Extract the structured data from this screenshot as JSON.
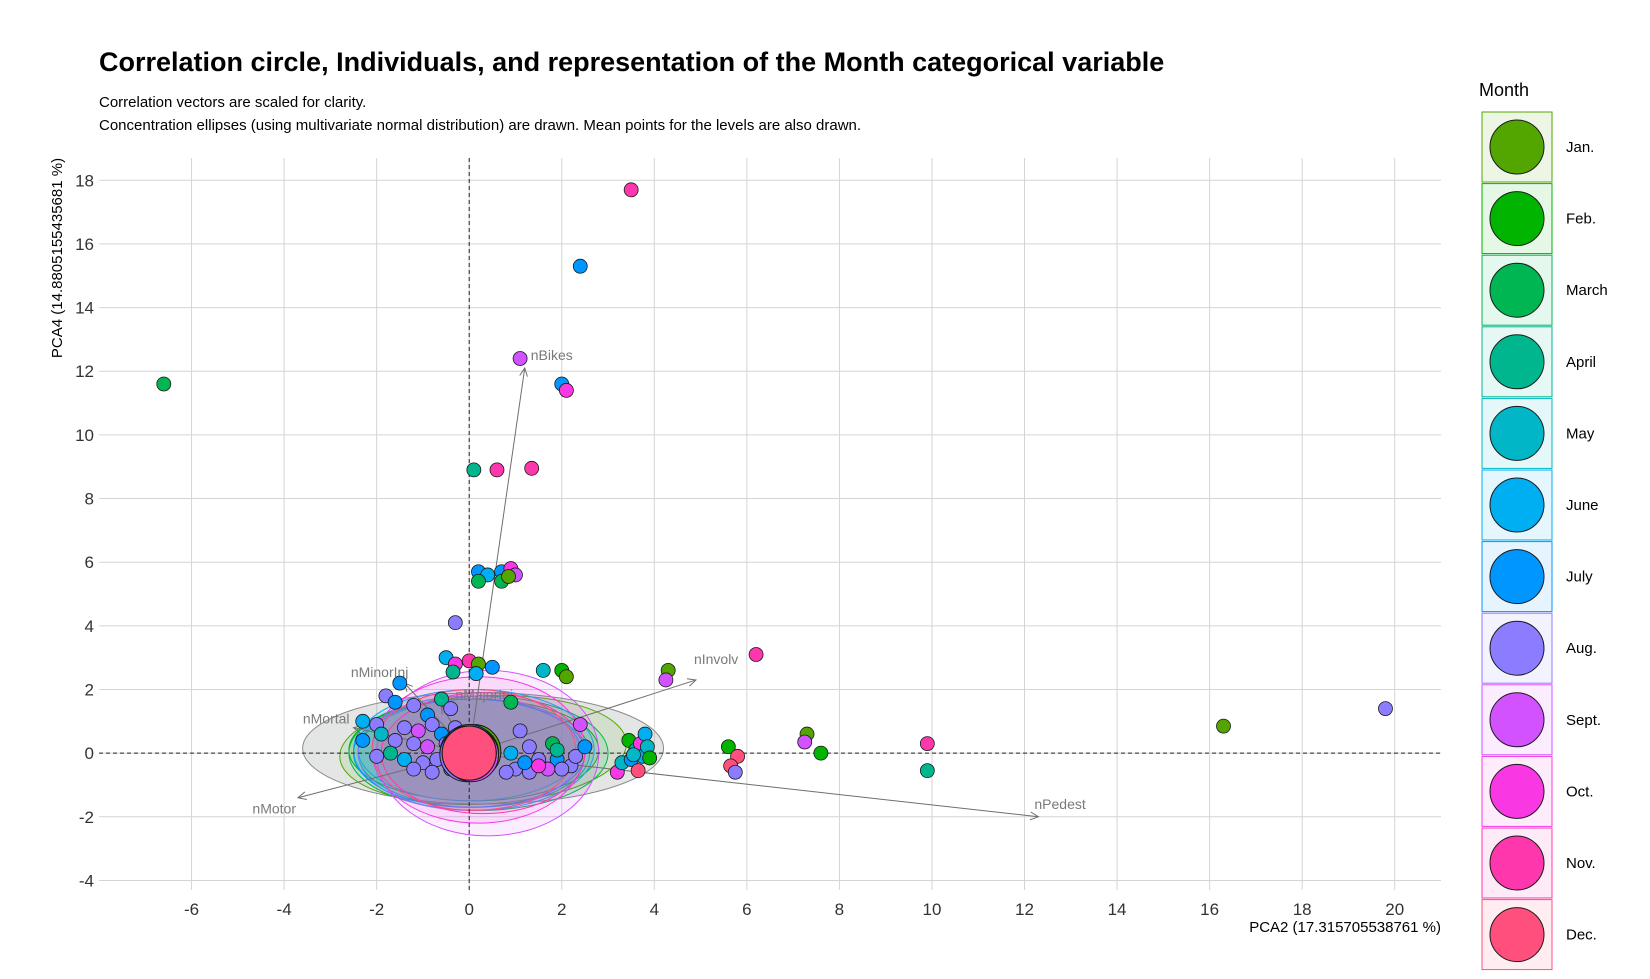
{
  "chart_data": {
    "type": "scatter",
    "title": "Correlation circle, Individuals, and representation of the Month categorical variable",
    "subtitle": [
      "Correlation vectors are scaled for clarity.",
      "Concentration ellipses (using multivariate normal distribution) are drawn. Mean points for the levels are also drawn."
    ],
    "xlabel": "PCA2 (17.315705538761 %)",
    "ylabel": "PCA4 (14.880515543568​1 %)",
    "xlim": [
      -8,
      21
    ],
    "ylim": [
      -4.3,
      18.7
    ],
    "x_ticks": [
      -6,
      -4,
      -2,
      0,
      2,
      4,
      6,
      8,
      10,
      12,
      14,
      16,
      18,
      20
    ],
    "y_ticks": [
      -4,
      -2,
      0,
      2,
      4,
      6,
      8,
      10,
      12,
      14,
      16,
      18
    ],
    "grid": true,
    "legend": {
      "title": "Month",
      "placement": "right",
      "levels": [
        {
          "label": "Jan.",
          "color": "#53A600"
        },
        {
          "label": "Feb.",
          "color": "#00B400"
        },
        {
          "label": "March",
          "color": "#00B653"
        },
        {
          "label": "April",
          "color": "#00B68F"
        },
        {
          "label": "May",
          "color": "#00B6C7"
        },
        {
          "label": "June",
          "color": "#00AEF2"
        },
        {
          "label": "July",
          "color": "#0096FF"
        },
        {
          "label": "Aug.",
          "color": "#8C7CFF"
        },
        {
          "label": "Sept.",
          "color": "#D352FF"
        },
        {
          "label": "Oct.",
          "color": "#FA38E3"
        },
        {
          "label": "Nov.",
          "color": "#FF37AD"
        },
        {
          "label": "Dec.",
          "color": "#FF4F7D"
        }
      ]
    },
    "vectors": [
      {
        "name": "nBikes",
        "x": 1.2,
        "y": 12.1
      },
      {
        "name": "nInvolv",
        "x": 4.9,
        "y": 2.3
      },
      {
        "name": "nPedest",
        "x": 12.3,
        "y": -2.0
      },
      {
        "name": "nMotor",
        "x": -3.7,
        "y": -1.4
      },
      {
        "name": "nMortal",
        "x": -2.5,
        "y": 0.8
      },
      {
        "name": "nMinorInj",
        "x": -1.4,
        "y": 2.2
      },
      {
        "name": "nMajorInj",
        "x": -0.6,
        "y": 1.5
      }
    ],
    "ellipses": [
      {
        "month": 0,
        "cx": 0.3,
        "cy": 0.1,
        "rx": 3.1,
        "ry": 1.7,
        "rot": 3
      },
      {
        "month": 1,
        "cx": 0.1,
        "cy": 0.1,
        "rx": 2.7,
        "ry": 1.6,
        "rot": 0
      },
      {
        "month": 2,
        "cx": 0.2,
        "cy": 0.0,
        "rx": 2.8,
        "ry": 1.8,
        "rot": 0
      },
      {
        "month": 3,
        "cx": 0.1,
        "cy": 0.0,
        "rx": 2.5,
        "ry": 1.7,
        "rot": 0
      },
      {
        "month": 4,
        "cx": 0.0,
        "cy": 0.1,
        "rx": 2.4,
        "ry": 1.6,
        "rot": 0
      },
      {
        "month": 5,
        "cx": 0.1,
        "cy": 0.1,
        "rx": 2.6,
        "ry": 1.9,
        "rot": 0
      },
      {
        "month": 6,
        "cx": 0.0,
        "cy": 0.0,
        "rx": 2.5,
        "ry": 1.7,
        "rot": 0
      },
      {
        "month": 7,
        "cx": 0.0,
        "cy": 0.0,
        "rx": 2.4,
        "ry": 1.8,
        "rot": 0
      },
      {
        "month": 8,
        "cx": 0.4,
        "cy": 0.0,
        "rx": 2.4,
        "ry": 2.6,
        "rot": 0
      },
      {
        "month": 9,
        "cx": 0.2,
        "cy": 0.1,
        "rx": 2.3,
        "ry": 2.3,
        "rot": 0
      },
      {
        "month": 10,
        "cx": 0.3,
        "cy": 0.0,
        "rx": 2.2,
        "ry": 1.9,
        "rot": 0
      },
      {
        "month": 11,
        "cx": 0.1,
        "cy": 0.1,
        "rx": 2.2,
        "ry": 1.9,
        "rot": 0
      }
    ],
    "points": [
      [
        -6.6,
        11.6,
        2
      ],
      [
        3.5,
        17.7,
        10
      ],
      [
        2.4,
        15.3,
        6
      ],
      [
        1.1,
        12.4,
        8
      ],
      [
        2.0,
        11.6,
        6
      ],
      [
        2.1,
        11.4,
        9
      ],
      [
        0.1,
        8.9,
        3
      ],
      [
        0.6,
        8.9,
        10
      ],
      [
        1.35,
        8.95,
        10
      ],
      [
        0.2,
        5.7,
        6
      ],
      [
        0.4,
        5.6,
        5
      ],
      [
        0.7,
        5.7,
        6
      ],
      [
        0.9,
        5.8,
        9
      ],
      [
        1.0,
        5.6,
        8
      ],
      [
        0.7,
        5.4,
        2
      ],
      [
        0.2,
        5.4,
        2
      ],
      [
        0.85,
        5.55,
        0
      ],
      [
        -0.3,
        4.1,
        7
      ],
      [
        -0.5,
        3.0,
        5
      ],
      [
        -0.3,
        2.8,
        9
      ],
      [
        0.0,
        2.9,
        10
      ],
      [
        0.2,
        2.8,
        0
      ],
      [
        0.5,
        2.7,
        6
      ],
      [
        1.6,
        2.6,
        4
      ],
      [
        2.0,
        2.6,
        1
      ],
      [
        2.1,
        2.4,
        0
      ],
      [
        -0.35,
        2.55,
        3
      ],
      [
        0.15,
        2.5,
        5
      ],
      [
        -1.5,
        2.2,
        6
      ],
      [
        4.3,
        2.6,
        0
      ],
      [
        4.25,
        2.3,
        8
      ],
      [
        6.2,
        3.1,
        10
      ],
      [
        -1.8,
        1.8,
        7
      ],
      [
        -1.6,
        1.6,
        6
      ],
      [
        -1.2,
        1.5,
        7
      ],
      [
        -0.9,
        1.2,
        6
      ],
      [
        -0.6,
        1.7,
        3
      ],
      [
        -0.4,
        1.4,
        7
      ],
      [
        0.9,
        1.6,
        2
      ],
      [
        -2.0,
        0.9,
        7
      ],
      [
        -2.3,
        1.0,
        5
      ],
      [
        -1.4,
        0.8,
        7
      ],
      [
        -1.1,
        0.7,
        8
      ],
      [
        -0.8,
        0.9,
        7
      ],
      [
        -0.6,
        0.6,
        6
      ],
      [
        -0.3,
        0.8,
        7
      ],
      [
        -1.9,
        0.6,
        4
      ],
      [
        -2.3,
        0.4,
        6
      ],
      [
        -1.6,
        0.4,
        7
      ],
      [
        -1.2,
        0.3,
        7
      ],
      [
        -0.9,
        0.2,
        8
      ],
      [
        -0.5,
        0.3,
        7
      ],
      [
        -1.7,
        0.0,
        3
      ],
      [
        -2.0,
        -0.1,
        7
      ],
      [
        -1.4,
        -0.2,
        5
      ],
      [
        -1.0,
        -0.3,
        7
      ],
      [
        -0.7,
        -0.2,
        7
      ],
      [
        -0.4,
        -0.5,
        6
      ],
      [
        -1.2,
        -0.5,
        7
      ],
      [
        -0.8,
        -0.6,
        7
      ],
      [
        1.1,
        0.7,
        7
      ],
      [
        1.3,
        0.2,
        7
      ],
      [
        1.5,
        -0.2,
        7
      ],
      [
        1.8,
        0.3,
        2
      ],
      [
        1.9,
        -0.2,
        6
      ],
      [
        2.2,
        -0.4,
        7
      ],
      [
        2.4,
        0.9,
        8
      ],
      [
        2.3,
        -0.1,
        7
      ],
      [
        1.0,
        -0.5,
        7
      ],
      [
        1.3,
        -0.6,
        7
      ],
      [
        1.7,
        -0.5,
        8
      ],
      [
        0.9,
        0.0,
        5
      ],
      [
        1.2,
        -0.3,
        6
      ],
      [
        2.5,
        0.2,
        6
      ],
      [
        2.0,
        -0.5,
        7
      ],
      [
        0.8,
        -0.6,
        7
      ],
      [
        1.5,
        -0.4,
        9
      ],
      [
        1.9,
        0.1,
        3
      ],
      [
        3.2,
        -0.6,
        9
      ],
      [
        3.3,
        -0.3,
        4
      ],
      [
        3.45,
        0.4,
        1
      ],
      [
        3.6,
        0.1,
        3
      ],
      [
        3.7,
        0.3,
        9
      ],
      [
        3.75,
        -0.1,
        5
      ],
      [
        3.8,
        0.6,
        5
      ],
      [
        3.85,
        0.2,
        4
      ],
      [
        3.5,
        -0.2,
        6
      ],
      [
        3.65,
        -0.55,
        11
      ],
      [
        3.9,
        -0.15,
        1
      ],
      [
        3.55,
        -0.05,
        4
      ],
      [
        5.6,
        0.2,
        1
      ],
      [
        5.8,
        -0.1,
        11
      ],
      [
        5.65,
        -0.4,
        11
      ],
      [
        5.75,
        -0.6,
        7
      ],
      [
        7.3,
        0.6,
        0
      ],
      [
        7.25,
        0.35,
        8
      ],
      [
        7.6,
        0.0,
        1
      ],
      [
        9.9,
        0.3,
        10
      ],
      [
        9.9,
        -0.55,
        3
      ],
      [
        16.3,
        0.85,
        0
      ],
      [
        19.8,
        1.4,
        7
      ]
    ],
    "means": [
      {
        "month": 0,
        "x": 0.1,
        "y": 0.05
      },
      {
        "month": 1,
        "x": 0.05,
        "y": 0.0
      },
      {
        "month": 2,
        "x": 0.05,
        "y": 0.0
      },
      {
        "month": 3,
        "x": 0.0,
        "y": 0.0
      },
      {
        "month": 4,
        "x": 0.0,
        "y": 0.0
      },
      {
        "month": 5,
        "x": 0.0,
        "y": 0.05
      },
      {
        "month": 6,
        "x": -0.05,
        "y": 0.0
      },
      {
        "month": 7,
        "x": -0.05,
        "y": -0.05
      },
      {
        "month": 8,
        "x": 0.05,
        "y": -0.05
      },
      {
        "month": 9,
        "x": 0.0,
        "y": 0.0
      },
      {
        "month": 10,
        "x": 0.0,
        "y": 0.0
      },
      {
        "month": 11,
        "x": 0.0,
        "y": 0.0
      }
    ]
  }
}
